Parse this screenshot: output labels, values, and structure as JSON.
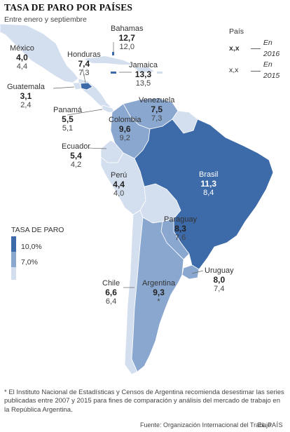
{
  "title": "TASA DE PARO POR PAÍSES",
  "subtitle": "Entre enero y septiembre",
  "key": {
    "title": "País",
    "sample_bold": "x,x",
    "sample_normal": "x,x",
    "label_2016": "En 2016",
    "label_2015": "En 2015"
  },
  "legend": {
    "title": "TASA DE PARO",
    "high": "10,0%",
    "mid": "7,0%",
    "colors": {
      "dark": "#3d6aa8",
      "medium": "#8aa7cf",
      "light": "#d3deee"
    }
  },
  "countries": {
    "mexico": {
      "name": "México",
      "v2016": "4,0",
      "v2015": "4,4"
    },
    "bahamas": {
      "name": "Bahamas",
      "v2016": "12,7",
      "v2015": "12,0"
    },
    "honduras": {
      "name": "Honduras",
      "v2016": "7,4",
      "v2015": "7,3"
    },
    "jamaica": {
      "name": "Jamaica",
      "v2016": "13,3",
      "v2015": "13,5"
    },
    "guatemala": {
      "name": "Guatemala",
      "v2016": "3,1",
      "v2015": "2,4"
    },
    "panama": {
      "name": "Panamá",
      "v2016": "5,5",
      "v2015": "5,1"
    },
    "venezuela": {
      "name": "Venezuela",
      "v2016": "7,5",
      "v2015": "7,3"
    },
    "colombia": {
      "name": "Colombia",
      "v2016": "9,6",
      "v2015": "9,2"
    },
    "ecuador": {
      "name": "Ecuador",
      "v2016": "5,4",
      "v2015": "4,2"
    },
    "peru": {
      "name": "Perú",
      "v2016": "4,4",
      "v2015": "4,0"
    },
    "brasil": {
      "name": "Brasil",
      "v2016": "11,3",
      "v2015": "8,4"
    },
    "paraguay": {
      "name": "Paraguay",
      "v2016": "8,3",
      "v2015": "7,6"
    },
    "uruguay": {
      "name": "Uruguay",
      "v2016": "8,0",
      "v2015": "7,4"
    },
    "chile": {
      "name": "Chile",
      "v2016": "6,6",
      "v2015": "6,4"
    },
    "argentina": {
      "name": "Argentina",
      "v2016": "9,3",
      "v2015": "*"
    }
  },
  "footnote": "* El Instituto Nacional de Estadísticas y Censos de Argentina recomienda desestimar las series publicadas entre 2007 y 2015 para fines de comparación y análisis del mercado de trabajo en la República Argentina.",
  "source": "Fuente: Organización Internacional del Trabajo.",
  "brand": "EL PAÍS"
}
